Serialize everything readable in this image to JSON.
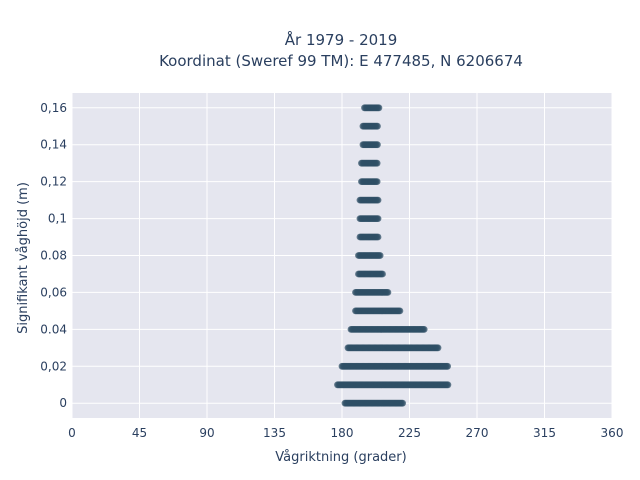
{
  "chart_data": {
    "type": "scatter",
    "title": [
      "År 1979 - 2019",
      "Koordinat (Sweref 99 TM): E 477485, N 6206674"
    ],
    "xlabel": "Vågriktning (grader)",
    "ylabel": "Signifikant våghöjd (m)",
    "xlim": [
      0,
      360
    ],
    "ylim": [
      -0.008,
      0.168
    ],
    "xticks": [
      0,
      45,
      90,
      135,
      180,
      225,
      270,
      315,
      360
    ],
    "xtick_labels": [
      "0",
      "45",
      "90",
      "135",
      "180",
      "225",
      "270",
      "315",
      "360"
    ],
    "yticks": [
      0,
      0.02,
      0.04,
      0.06,
      0.08,
      0.1,
      0.12,
      0.14,
      0.16
    ],
    "ytick_labels": [
      "0",
      "0,02",
      "0.04",
      "0,06",
      "0.08",
      "0,1",
      "0,12",
      "0,14",
      "0,16"
    ],
    "grid": true,
    "marker_color": "#2f4f66",
    "plot_bg": "#e5e6ef",
    "series": [
      {
        "x_ranges": [
          {
            "y": 0.0,
            "x_min": 182,
            "x_max": 221
          },
          {
            "y": 0.01,
            "x_min": 177,
            "x_max": 251
          },
          {
            "y": 0.02,
            "x_min": 180,
            "x_max": 251
          },
          {
            "y": 0.03,
            "x_min": 184,
            "x_max": 244
          },
          {
            "y": 0.04,
            "x_min": 186,
            "x_max": 235
          },
          {
            "y": 0.05,
            "x_min": 189,
            "x_max": 219
          },
          {
            "y": 0.06,
            "x_min": 189,
            "x_max": 211
          },
          {
            "y": 0.07,
            "x_min": 191,
            "x_max": 207
          },
          {
            "y": 0.08,
            "x_min": 191,
            "x_max": 206
          },
          {
            "y": 0.09,
            "x_min": 192,
            "x_max": 204
          },
          {
            "y": 0.1,
            "x_min": 192,
            "x_max": 204
          },
          {
            "y": 0.11,
            "x_min": 192,
            "x_max": 204
          },
          {
            "y": 0.12,
            "x_min": 193,
            "x_max": 204
          },
          {
            "y": 0.13,
            "x_min": 193,
            "x_max": 204
          },
          {
            "y": 0.14,
            "x_min": 194,
            "x_max": 204
          },
          {
            "y": 0.15,
            "x_min": 194,
            "x_max": 204
          },
          {
            "y": 0.16,
            "x_min": 195,
            "x_max": 205
          }
        ]
      }
    ]
  }
}
